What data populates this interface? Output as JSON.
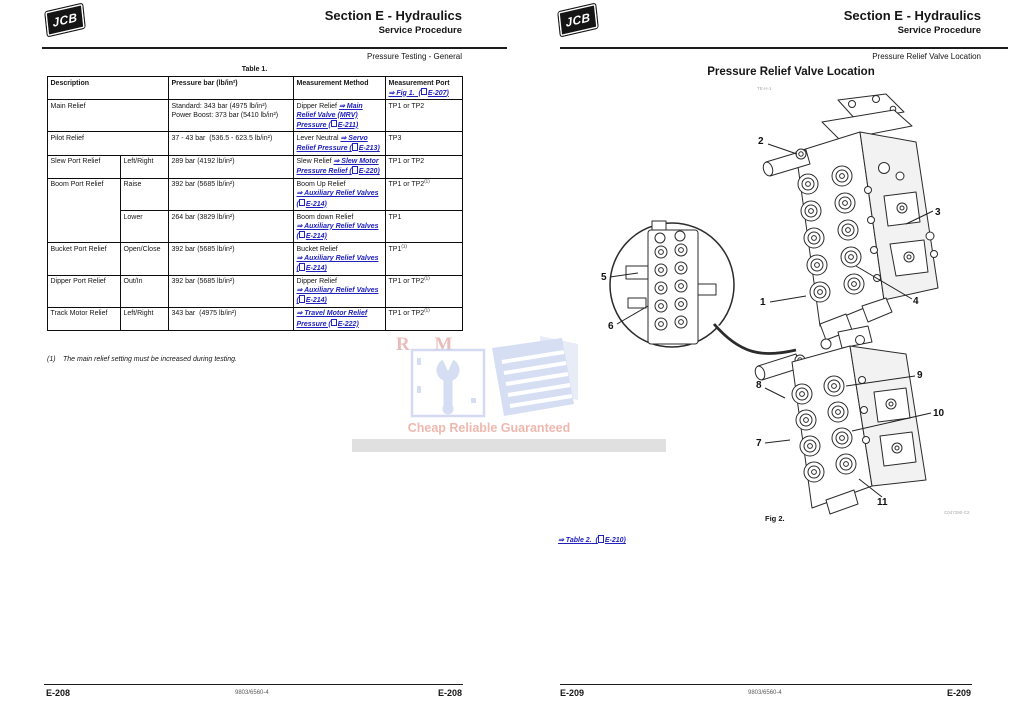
{
  "watermark": {
    "letters": "R M",
    "tagline": "Cheap Reliable Guaranteed",
    "accent_blue": "#c6d2ee",
    "accent_red": "#e8a49c"
  },
  "left_page": {
    "brand": "JCB",
    "section_title": "Section E - Hydraulics",
    "section_subtitle": "Service Procedure",
    "breadcrumb": "Pressure Testing - General",
    "table_caption": "Table 1.",
    "table": {
      "headers": {
        "description": "Description",
        "pressure": "Pressure bar (lb/in²)",
        "method": "Measurement Method",
        "port": "Measurement Port",
        "port_link_main": "⇒ Fig 1.",
        "port_link_ref": "E-207"
      },
      "rows": [
        {
          "desc": "Main Relief",
          "desc_colspan": 2,
          "pressure": "Standard: 343 bar (4975 lb/in²)\nPower Boost: 373 bar (5410 lb/in²)",
          "method_plain": "Dipper Relief ",
          "link_main": "⇒ Main Relief Valve (MRV) Pressure",
          "link_ref": "E-211",
          "port": "TP1 or TP2",
          "port_sup": ""
        },
        {
          "desc": "Pilot Relief",
          "desc_colspan": 2,
          "pressure": "37 - 43 bar  (536.5 - 623.5 lb/in²)",
          "method_plain": "Lever Neutral ",
          "link_main": "⇒ Servo Relief Pressure",
          "link_ref": "E-213",
          "port": "TP3",
          "port_sup": ""
        },
        {
          "desc": "Slew Port Relief",
          "sub": "Left/Right",
          "pressure": "289 bar (4192 lb/in²)",
          "method_plain": "Slew Relief ",
          "link_main": "⇒ Slew Motor Pressure Relief",
          "link_ref": "E-220",
          "port": "TP1 or TP2",
          "port_sup": ""
        },
        {
          "desc": "Boom Port Relief",
          "desc_rowspan": 2,
          "sub": "Raise",
          "pressure": "392 bar (5685 lb/in²)",
          "method_plain": "Boom Up Relief\n",
          "link_main": "⇒ Auxiliary Relief Valves",
          "link_ref": "E-214",
          "port": "TP1 or TP2",
          "port_sup": "(1)"
        },
        {
          "skip_desc": true,
          "sub": "Lower",
          "pressure": "264 bar (3829 lb/in²)",
          "method_plain": "Boom down Relief\n",
          "link_main": "⇒ Auxiliary Relief Valves",
          "link_ref": "E-214",
          "port": "TP1",
          "port_sup": ""
        },
        {
          "desc": "Bucket Port Relief",
          "sub": "Open/Close",
          "pressure": "392 bar (5685 lb/in²)",
          "method_plain": "Bucket Relief\n",
          "link_main": "⇒ Auxiliary Relief Valves",
          "link_ref": "E-214",
          "port": "TP1",
          "port_sup": "(1)"
        },
        {
          "desc": "Dipper Port Relief",
          "sub": "Out/In",
          "pressure": "392 bar (5685 lb/in²)",
          "method_plain": "Dipper Relief\n",
          "link_main": "⇒ Auxiliary Relief Valves",
          "link_ref": "E-214",
          "port": "TP1 or TP2",
          "port_sup": "(1)"
        },
        {
          "desc": "Track Motor Relief",
          "sub": "Left/Right",
          "pressure": "343 bar  (4975 lb/in²)",
          "method_plain": "",
          "link_main": "⇒ Travel Motor Relief Pressure",
          "link_ref": "E-222",
          "port": "TP1 or TP2",
          "port_sup": "(1)"
        }
      ]
    },
    "footnote_num": "(1)",
    "footnote_text": "The main relief setting must be increased during testing.",
    "footer": {
      "page_left": "E-208",
      "doc_number": "9803/6560-4",
      "page_right": "E-208"
    }
  },
  "right_page": {
    "brand": "JCB",
    "section_title": "Section E - Hydraulics",
    "section_subtitle": "Service Procedure",
    "breadcrumb": "Pressure Relief Valve Location",
    "page_title": "Pressure Relief Valve Location",
    "figure": {
      "drawing_ref_top": "TE-H-1",
      "drawing_ref_bottom": "C047290-C2",
      "caption": "Fig 2.",
      "callouts": [
        "1",
        "2",
        "3",
        "4",
        "5",
        "6",
        "7",
        "8",
        "9",
        "10",
        "11"
      ]
    },
    "table_link_main": "⇒ Table 2.",
    "table_link_ref": "E-210",
    "footer": {
      "page_left": "E-209",
      "doc_number": "9803/6560-4",
      "page_right": "E-209"
    }
  }
}
